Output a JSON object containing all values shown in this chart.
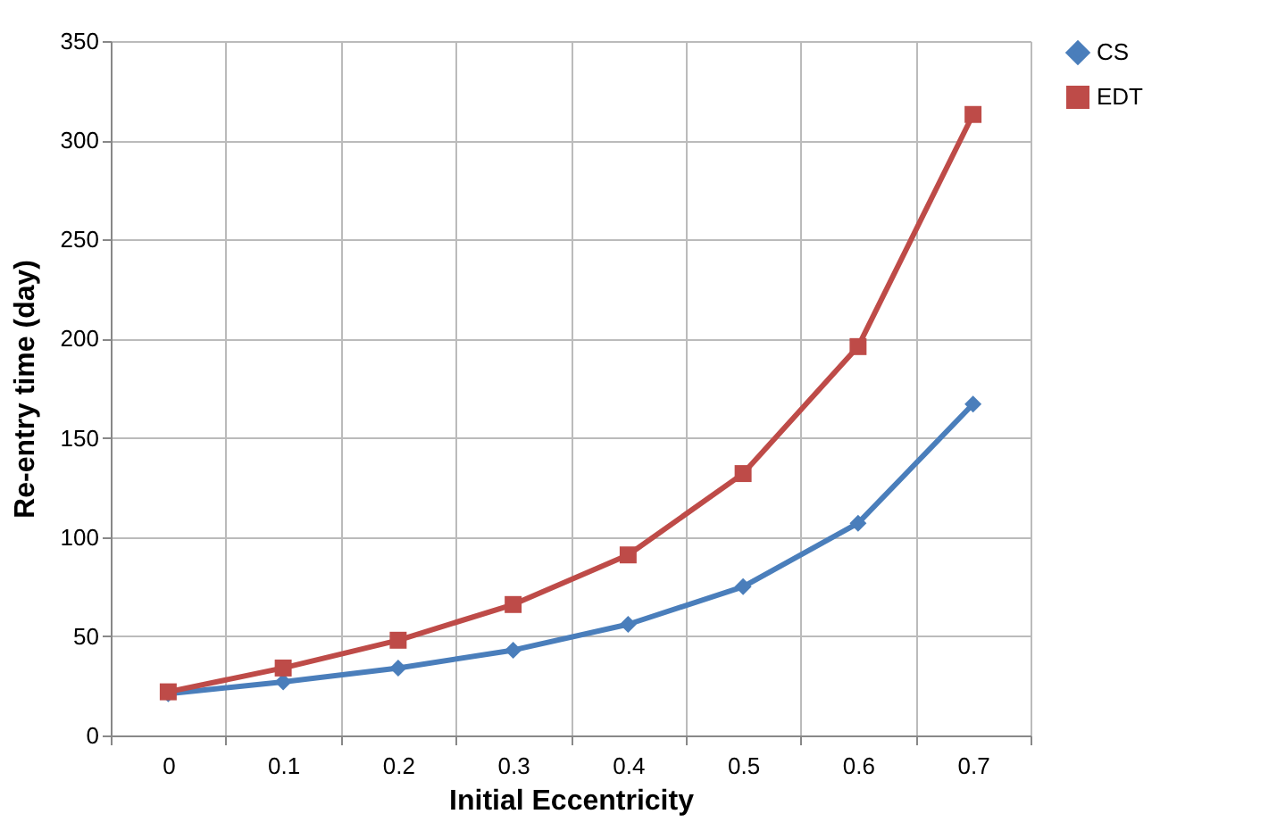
{
  "chart_data": {
    "type": "line",
    "xlabel": "Initial Eccentricity",
    "ylabel": "Re-entry time (day)",
    "categories": [
      "0",
      "0.1",
      "0.2",
      "0.3",
      "0.4",
      "0.5",
      "0.6",
      "0.7"
    ],
    "series": [
      {
        "name": "CS",
        "color": "#4a7ebb",
        "marker": "diamond",
        "values": [
          21,
          27,
          34,
          43,
          56,
          75,
          107,
          167
        ]
      },
      {
        "name": "EDT",
        "color": "#be4b48",
        "marker": "square",
        "values": [
          22,
          34,
          48,
          66,
          91,
          132,
          196,
          313
        ]
      }
    ],
    "ylim": [
      0,
      350
    ],
    "yticks": [
      0,
      50,
      100,
      150,
      200,
      250,
      300,
      350
    ],
    "grid": true,
    "legend": "right",
    "line_style": "solid"
  }
}
